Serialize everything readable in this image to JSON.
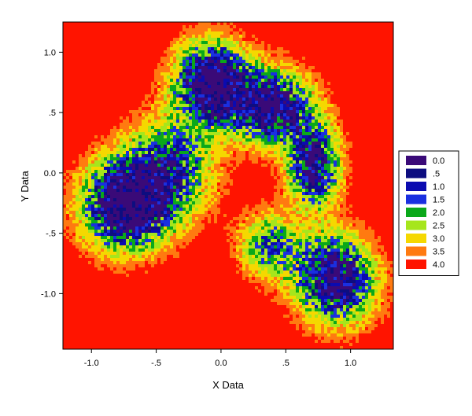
{
  "chart_data": {
    "type": "heatmap",
    "title": "",
    "xlabel": "X Data",
    "ylabel": "Y Data",
    "xlim": [
      -1.22,
      1.33
    ],
    "ylim": [
      -1.46,
      1.25
    ],
    "x_ticks": [
      {
        "value": -1.0,
        "label": "-1.0"
      },
      {
        "value": -0.5,
        "label": "-.5"
      },
      {
        "value": 0.0,
        "label": "0.0"
      },
      {
        "value": 0.5,
        "label": ".5"
      },
      {
        "value": 1.0,
        "label": "1.0"
      }
    ],
    "y_ticks": [
      {
        "value": 1.0,
        "label": "1.0"
      },
      {
        "value": 0.5,
        "label": ".5"
      },
      {
        "value": 0.0,
        "label": "0.0"
      },
      {
        "value": -0.5,
        "label": "-.5"
      },
      {
        "value": -1.0,
        "label": "-1.0"
      }
    ],
    "background_level": 4.0,
    "legend": {
      "placement": "right",
      "levels": [
        {
          "label": "0.0",
          "value": 0.0,
          "color": "#3a0a78"
        },
        {
          "label": ".5",
          "value": 0.5,
          "color": "#0d0d80"
        },
        {
          "label": "1.0",
          "value": 1.0,
          "color": "#0b0bb0"
        },
        {
          "label": "1.5",
          "value": 1.5,
          "color": "#1a30e0"
        },
        {
          "label": "2.0",
          "value": 2.0,
          "color": "#0aa81a"
        },
        {
          "label": "2.5",
          "value": 2.5,
          "color": "#a6e61c"
        },
        {
          "label": "3.0",
          "value": 3.0,
          "color": "#f5d800"
        },
        {
          "label": "3.5",
          "value": 3.5,
          "color": "#ff7a10"
        },
        {
          "label": "4.0",
          "value": 4.0,
          "color": "#ff1400"
        }
      ]
    },
    "clusters": [
      {
        "cx": -0.72,
        "cy": -0.25,
        "sx": 0.22,
        "sy": 0.25,
        "rot": -0.2,
        "amp": 1.0
      },
      {
        "cx": -0.08,
        "cy": 0.75,
        "sx": 0.18,
        "sy": 0.22,
        "rot": 0.0,
        "amp": 0.95
      },
      {
        "cx": 0.38,
        "cy": 0.55,
        "sx": 0.22,
        "sy": 0.2,
        "rot": -0.5,
        "amp": 0.85
      },
      {
        "cx": 0.72,
        "cy": 0.05,
        "sx": 0.13,
        "sy": 0.22,
        "rot": 0.0,
        "amp": 0.75
      },
      {
        "cx": 0.88,
        "cy": -0.88,
        "sx": 0.2,
        "sy": 0.24,
        "rot": 0.1,
        "amp": 0.85
      },
      {
        "cx": 0.38,
        "cy": -0.6,
        "sx": 0.16,
        "sy": 0.18,
        "rot": 0.0,
        "amp": 0.45
      },
      {
        "cx": -0.38,
        "cy": 0.05,
        "sx": 0.22,
        "sy": 0.28,
        "rot": 0.0,
        "amp": 0.5
      }
    ]
  }
}
